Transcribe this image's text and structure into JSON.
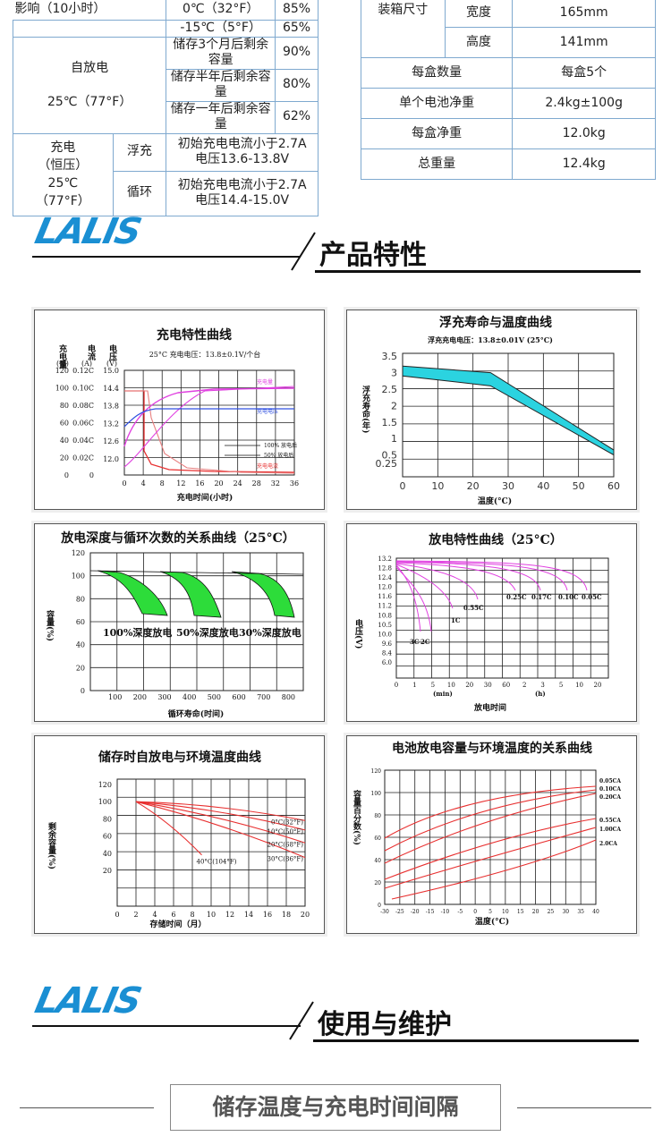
{
  "spec_left": {
    "r1_label": "影响（10小时）",
    "r1_temp": "0℃（32°F）",
    "r1_val": "85%",
    "r2_temp": "-15℃（5°F）",
    "r2_val": "65%",
    "self_label_1": "自放电",
    "self_label_2": "25℃（77°F）",
    "s1": "储存3个月后剩余容量",
    "s1v": "90%",
    "s2": "储存半年后剩余容量",
    "s2v": "80%",
    "s3": "储存一年后剩余容量",
    "s3v": "62%",
    "charge_l1": "充电",
    "charge_l2": "（恒压）",
    "charge_l3": "25℃",
    "charge_l4": "（77°F）",
    "float": "浮充",
    "float_d1": "初始充电电流小于2.7A",
    "float_d2": "电压13.6-13.8V",
    "cycle": "循环",
    "cycle_d1": "初始充电电流小于2.7A",
    "cycle_d2": "电压14.4-15.0V"
  },
  "spec_right": {
    "box": "装箱尺寸",
    "width": "宽度",
    "width_v": "165mm",
    "height": "高度",
    "height_v": "141mm",
    "qty": "每盒数量",
    "qty_v": "每盒5个",
    "net": "单个电池净重",
    "net_v": "2.4kg±100g",
    "box_net": "每盒净重",
    "box_net_v": "12.0kg",
    "gross": "总重量",
    "gross_v": "12.4kg"
  },
  "logo": "LALIS",
  "section1_title": "产品特性",
  "section2_title": "使用与维护",
  "note": "储存温度与充电时间间隔",
  "colors": {
    "accent": "#1a8fd3",
    "cyan": "#2bd3e0",
    "green": "#2ddc3a",
    "magenta": "#e040e0",
    "red": "#e83030",
    "blue": "#3050e0"
  },
  "chart_data": [
    {
      "type": "line",
      "title": "充电特性曲线",
      "subtitle": "25°C 充电电压：13.8±0.1V/个台",
      "xlabel": "充电时间(小时)",
      "x_ticks": [
        "0",
        "4",
        "8",
        "12",
        "16",
        "20",
        "24",
        "28",
        "32",
        "36"
      ],
      "y_heads": [
        "充电量",
        "电流",
        "电压"
      ],
      "y_units": [
        "(%)",
        "(A)",
        "(V)"
      ],
      "y1_ticks": [
        "120",
        "100",
        "80",
        "60",
        "40",
        "20",
        "0"
      ],
      "y2_ticks": [
        "0.12C",
        "0.10C",
        "0.08C",
        "0.06C",
        "0.04C",
        "0.02C",
        "0"
      ],
      "y3_ticks": [
        "15.0",
        "14.4",
        "13.8",
        "13.2",
        "12.6",
        "12.0"
      ],
      "labels": [
        "充电量",
        "充电电压",
        "100% 放电后",
        "50% 放电后",
        "充电电流"
      ]
    },
    {
      "type": "area",
      "title": "浮充寿命与温度曲线",
      "subtitle": "浮充充电电压：13.8±0.01V (25°C)",
      "xlabel": "温度(°C)",
      "ylabel": "浮充寿命(年)",
      "x": [
        0,
        10,
        20,
        30,
        40,
        50,
        60
      ],
      "y_ticks": [
        "3.5",
        "3",
        "2.5",
        "2",
        "1.5",
        "1",
        "0.5",
        "0.25"
      ],
      "upper": [
        [
          0,
          3.2
        ],
        [
          25,
          3.0
        ],
        [
          60,
          0.65
        ]
      ],
      "lower": [
        [
          0,
          2.9
        ],
        [
          25,
          2.6
        ],
        [
          60,
          0.5
        ]
      ]
    },
    {
      "type": "line",
      "title": "放电深度与循环次数的关系曲线（25°C）",
      "xlabel": "循环寿命(时间)",
      "ylabel": "容量(%)",
      "x_ticks": [
        "100",
        "200",
        "300",
        "400",
        "500",
        "600",
        "700",
        "800"
      ],
      "y_ticks": [
        "120",
        "100",
        "80",
        "60",
        "40",
        "20",
        "0"
      ],
      "series": [
        {
          "name": "100%深度放电"
        },
        {
          "name": "50%深度放电"
        },
        {
          "name": "30%深度放电"
        }
      ]
    },
    {
      "type": "line",
      "title": "放电特性曲线（25°C）",
      "xlabel": "放电时间",
      "ylabel": "电压(V)",
      "y_ticks": [
        "13.2",
        "12.8",
        "12.4",
        "12.0",
        "11.6",
        "11.2",
        "10.8",
        "10.5",
        "10.0",
        "9.6",
        "8.4",
        "6.0"
      ],
      "x_ticks": [
        "0",
        "1",
        "5",
        "10",
        "20",
        "30",
        "60",
        "2",
        "3",
        "5",
        "10",
        "20"
      ],
      "x_units": [
        "(min)",
        "(h)"
      ],
      "series": [
        {
          "name": "3C"
        },
        {
          "name": "2C"
        },
        {
          "name": "1C"
        },
        {
          "name": "0.55C"
        },
        {
          "name": "0.25C"
        },
        {
          "name": "0.17C"
        },
        {
          "name": "0.10C"
        },
        {
          "name": "0.05C"
        }
      ]
    },
    {
      "type": "line",
      "title": "储存时自放电与环境温度曲线",
      "xlabel": "存储时间（月）",
      "ylabel": "剩余容量(%)",
      "x_ticks": [
        "0",
        "2",
        "4",
        "6",
        "8",
        "10",
        "12",
        "14",
        "16",
        "18",
        "20"
      ],
      "y_ticks": [
        "120",
        "100",
        "80",
        "60",
        "40",
        "20"
      ],
      "series": [
        {
          "name": "0°C(32°F)",
          "end": 78
        },
        {
          "name": "10°C(50°F)",
          "end": 67
        },
        {
          "name": "20°C(68°F)",
          "end": 52
        },
        {
          "name": "30°C(86°F)",
          "end": 35
        },
        {
          "name": "40°C(104°F)",
          "end": 38
        }
      ]
    },
    {
      "type": "line",
      "title": "电池放电容量与环境温度的关系曲线",
      "xlabel": "温度(°C)",
      "ylabel": "容量百分数(%)",
      "x_ticks": [
        "-30",
        "-25",
        "-20",
        "-15",
        "-10",
        "-5",
        "0",
        "5",
        "10",
        "15",
        "20",
        "25",
        "30",
        "35",
        "40"
      ],
      "y_ticks": [
        "120",
        "100",
        "80",
        "60",
        "40",
        "20",
        "0"
      ],
      "series": [
        {
          "name": "0.05CA"
        },
        {
          "name": "0.10CA"
        },
        {
          "name": "0.20CA"
        },
        {
          "name": "0.55CA"
        },
        {
          "name": "1.00CA"
        },
        {
          "name": "2.0CA"
        }
      ]
    }
  ]
}
